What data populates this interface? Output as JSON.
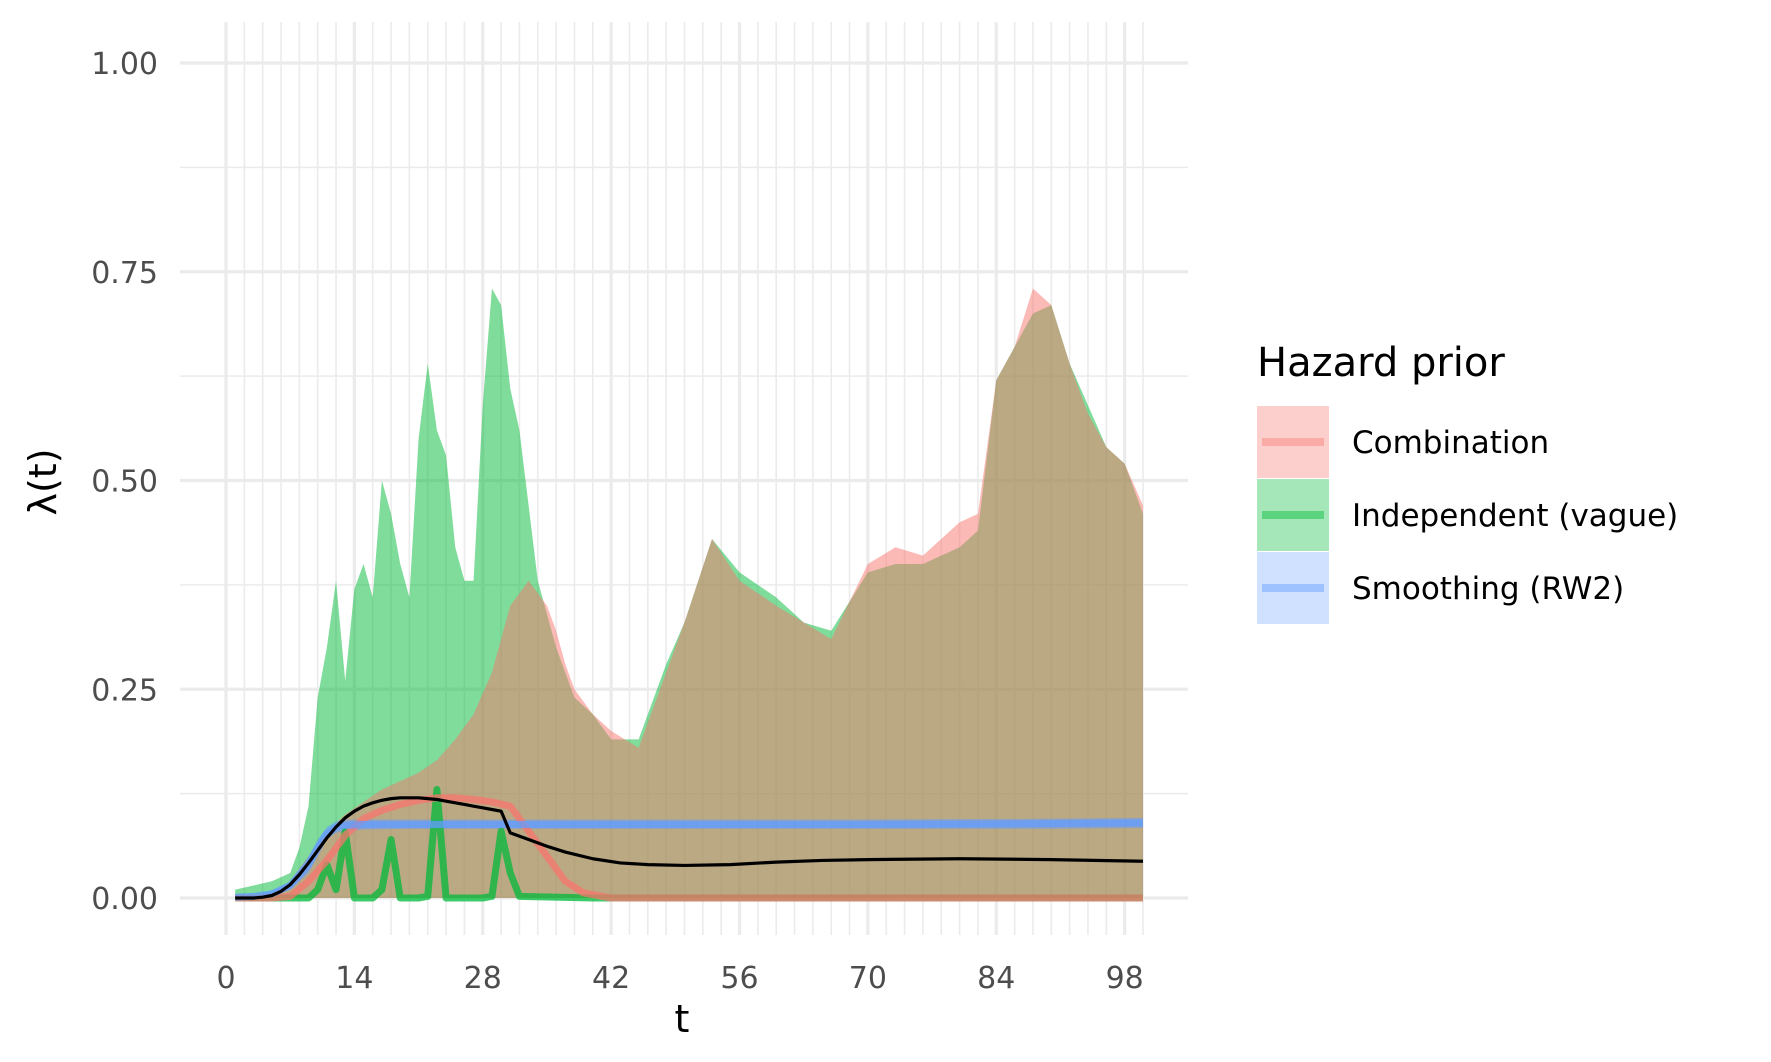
{
  "chart_data": {
    "type": "area",
    "xlabel": "t",
    "ylabel": "λ(t)",
    "xlim": [
      0,
      100
    ],
    "ylim": [
      0,
      1
    ],
    "x_ticks": [
      0,
      14,
      28,
      42,
      56,
      70,
      84,
      98
    ],
    "x_tick_labels": [
      "0",
      "14",
      "28",
      "42",
      "56",
      "70",
      "84",
      "98"
    ],
    "y_ticks": [
      0,
      0.25,
      0.5,
      0.75,
      1
    ],
    "y_tick_labels": [
      "0.00",
      "0.25",
      "0.50",
      "0.75",
      "1.00"
    ],
    "grid": true,
    "legend": {
      "title": "Hazard prior",
      "placement": "right",
      "entries": [
        "Combination",
        "Independent (vague)",
        "Smoothing (RW2)"
      ]
    },
    "colors": {
      "Combination": "#F8766D",
      "Independent (vague)": "#00BA38",
      "Smoothing (RW2)": "#619CFF",
      "true_hazard": "#000000"
    },
    "series": [
      {
        "name": "Independent (vague)",
        "ribbon_x": [
          1,
          3,
          5,
          7,
          8,
          9,
          10,
          11,
          12,
          13,
          14,
          15,
          16,
          17,
          18,
          19,
          20,
          21,
          22,
          23,
          24,
          25,
          26,
          27,
          28,
          29,
          30,
          31,
          32,
          33,
          34,
          35,
          36,
          38,
          40,
          42,
          45,
          48,
          50,
          53,
          56,
          60,
          63,
          66,
          70,
          73,
          76,
          80,
          82,
          84,
          86,
          88,
          90,
          92,
          94,
          96,
          98,
          100
        ],
        "ribbon_upper": [
          0.01,
          0.015,
          0.02,
          0.03,
          0.06,
          0.11,
          0.24,
          0.3,
          0.38,
          0.26,
          0.37,
          0.4,
          0.36,
          0.5,
          0.46,
          0.4,
          0.36,
          0.55,
          0.64,
          0.56,
          0.53,
          0.42,
          0.38,
          0.38,
          0.59,
          0.73,
          0.71,
          0.61,
          0.56,
          0.47,
          0.38,
          0.34,
          0.3,
          0.24,
          0.22,
          0.19,
          0.19,
          0.28,
          0.33,
          0.43,
          0.39,
          0.36,
          0.33,
          0.32,
          0.39,
          0.4,
          0.4,
          0.42,
          0.44,
          0.62,
          0.66,
          0.7,
          0.71,
          0.64,
          0.59,
          0.54,
          0.52,
          0.46
        ],
        "ribbon_lower": [
          0,
          0,
          0,
          0,
          0,
          0,
          0,
          0,
          0,
          0,
          0,
          0,
          0,
          0,
          0,
          0,
          0,
          0,
          0,
          0,
          0,
          0,
          0,
          0,
          0,
          0,
          0,
          0,
          0,
          0,
          0,
          0,
          0,
          0,
          0,
          0,
          0,
          0,
          0,
          0,
          0,
          0,
          0,
          0,
          0,
          0,
          0,
          0,
          0,
          0,
          0,
          0,
          0,
          0,
          0,
          0,
          0,
          0
        ],
        "mean_x": [
          1,
          9,
          10,
          11,
          12,
          13,
          14,
          15,
          16,
          17,
          18,
          19,
          20,
          21,
          22,
          23,
          24,
          25,
          26,
          27,
          28,
          29,
          30,
          31,
          32,
          40,
          100
        ],
        "mean_y": [
          0,
          0,
          0.01,
          0.04,
          0.01,
          0.08,
          0,
          0,
          0,
          0.01,
          0.07,
          0,
          0,
          0,
          0.002,
          0.13,
          0,
          0,
          0,
          0,
          0,
          0.002,
          0.08,
          0.03,
          0.002,
          0,
          0
        ]
      },
      {
        "name": "Combination",
        "ribbon_x": [
          1,
          3,
          5,
          7,
          9,
          11,
          13,
          15,
          17,
          19,
          21,
          23,
          25,
          27,
          29,
          31,
          33,
          35,
          36,
          37,
          38,
          40,
          42,
          45,
          48,
          50,
          53,
          56,
          60,
          63,
          66,
          70,
          73,
          76,
          80,
          82,
          84,
          86,
          88,
          90,
          92,
          94,
          96,
          98,
          100
        ],
        "ribbon_upper": [
          0.003,
          0.004,
          0.006,
          0.02,
          0.05,
          0.08,
          0.1,
          0.115,
          0.13,
          0.14,
          0.15,
          0.165,
          0.19,
          0.22,
          0.27,
          0.35,
          0.38,
          0.35,
          0.32,
          0.28,
          0.25,
          0.22,
          0.2,
          0.18,
          0.27,
          0.33,
          0.43,
          0.38,
          0.35,
          0.33,
          0.31,
          0.4,
          0.42,
          0.41,
          0.45,
          0.46,
          0.62,
          0.66,
          0.73,
          0.71,
          0.64,
          0.58,
          0.54,
          0.52,
          0.47
        ],
        "ribbon_lower": [
          0,
          0,
          0,
          0,
          0,
          0,
          0,
          0,
          0,
          0,
          0,
          0,
          0,
          0,
          0,
          0,
          0,
          0,
          0,
          0,
          0,
          0,
          0,
          0,
          0,
          0,
          0,
          0,
          0,
          0,
          0,
          0,
          0,
          0,
          0,
          0,
          0,
          0,
          0,
          0,
          0,
          0,
          0,
          0,
          0
        ],
        "mean_x": [
          1,
          5,
          7,
          9,
          11,
          13,
          15,
          17,
          19,
          21,
          23,
          25,
          27,
          29,
          31,
          33,
          35,
          37,
          39,
          42,
          50,
          100
        ],
        "mean_y": [
          0,
          0,
          0.002,
          0.02,
          0.045,
          0.075,
          0.095,
          0.105,
          0.112,
          0.117,
          0.12,
          0.12,
          0.118,
          0.115,
          0.11,
          0.08,
          0.05,
          0.02,
          0.006,
          0,
          0,
          0
        ]
      },
      {
        "name": "Smoothing (RW2)",
        "ribbon_x": [
          1,
          3,
          5,
          7,
          9,
          10,
          11,
          12,
          13,
          15,
          20,
          30,
          50,
          70,
          90,
          100
        ],
        "ribbon_upper": [
          0.002,
          0.003,
          0.008,
          0.02,
          0.05,
          0.07,
          0.085,
          0.092,
          0.094,
          0.094,
          0.094,
          0.094,
          0.094,
          0.094,
          0.095,
          0.096
        ],
        "ribbon_lower": [
          0,
          0,
          0.003,
          0.01,
          0.03,
          0.05,
          0.07,
          0.078,
          0.08,
          0.082,
          0.083,
          0.083,
          0.083,
          0.083,
          0.083,
          0.084
        ],
        "mean_x": [
          1,
          3,
          5,
          7,
          9,
          10,
          11,
          12,
          13,
          15,
          20,
          30,
          50,
          70,
          90,
          100
        ],
        "mean_y": [
          0.001,
          0.002,
          0.005,
          0.015,
          0.04,
          0.06,
          0.077,
          0.085,
          0.087,
          0.088,
          0.088,
          0.088,
          0.088,
          0.088,
          0.089,
          0.09
        ]
      }
    ],
    "true_hazard": {
      "x": [
        1,
        3,
        4,
        5,
        6,
        7,
        8,
        9,
        10,
        11,
        12,
        13,
        14,
        15,
        16,
        17,
        18,
        19,
        20,
        21,
        22,
        23,
        24,
        25,
        26,
        27,
        28,
        29,
        30,
        31,
        33,
        35,
        37,
        40,
        43,
        46,
        50,
        55,
        60,
        65,
        70,
        80,
        90,
        100
      ],
      "y": [
        0,
        0,
        0.001,
        0.003,
        0.008,
        0.016,
        0.028,
        0.042,
        0.057,
        0.072,
        0.085,
        0.096,
        0.104,
        0.11,
        0.114,
        0.117,
        0.119,
        0.12,
        0.12,
        0.12,
        0.119,
        0.118,
        0.116,
        0.114,
        0.112,
        0.11,
        0.108,
        0.106,
        0.104,
        0.078,
        0.07,
        0.062,
        0.055,
        0.047,
        0.042,
        0.04,
        0.039,
        0.04,
        0.043,
        0.045,
        0.046,
        0.047,
        0.046,
        0.044
      ]
    }
  }
}
